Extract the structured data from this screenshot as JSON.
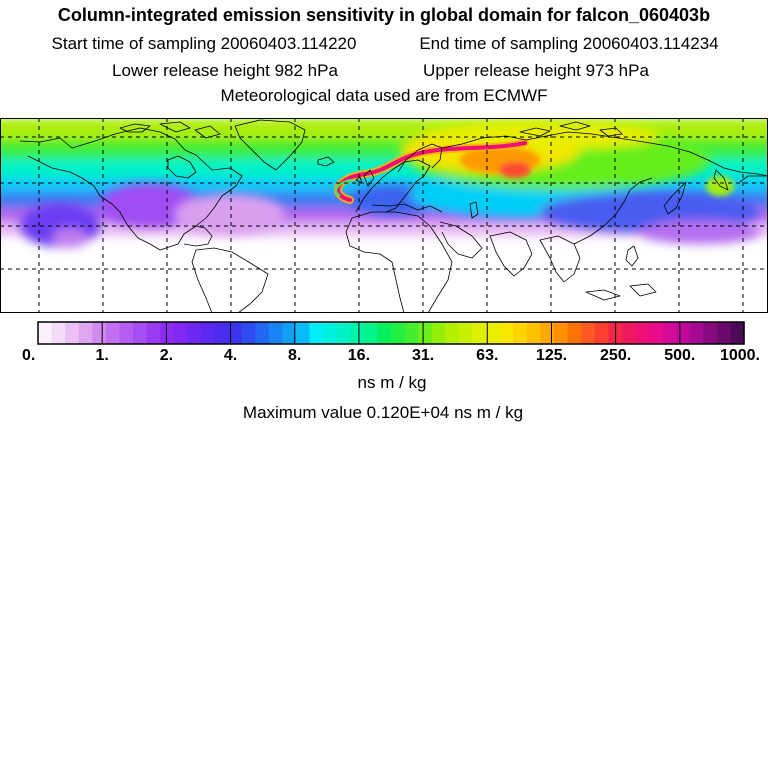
{
  "header": {
    "title": "Column-integrated emission sensitivity in global domain for falcon_060403b",
    "start_label": "Start time of sampling 20060403.114220",
    "end_label": "End time of sampling 20060403.114234",
    "lower_label": "Lower release height  982 hPa",
    "upper_label": "Upper release height  973 hPa",
    "met_label": "Meteorological data used are from ECMWF"
  },
  "colorbar": {
    "ticks": [
      "0.",
      "1.",
      "2.",
      "4.",
      "8.",
      "16.",
      "31.",
      "63.",
      "125.",
      "250.",
      "500.",
      "1000."
    ],
    "colors": [
      "#fbf0fb",
      "#f3dcf8",
      "#e9c1f4",
      "#dfa6f0",
      "#d18bee",
      "#c26ff0",
      "#b35ef1",
      "#a44ef3",
      "#9a3cf5",
      "#8e2cf6",
      "#8228f4",
      "#6e28f2",
      "#5a2af0",
      "#4a2cee",
      "#3a34ed",
      "#2e4cf0",
      "#2268f3",
      "#1884f6",
      "#10a0f8",
      "#08bcfa",
      "#00eef5",
      "#00f0e0",
      "#00f2c6",
      "#00f3a8",
      "#00f48a",
      "#06ef5c",
      "#22ee44",
      "#44ee2c",
      "#6cee18",
      "#94ee08",
      "#b4ef00",
      "#c8ef00",
      "#dcf000",
      "#eaee00",
      "#f6e800",
      "#ffd400",
      "#ffc000",
      "#ffa800",
      "#ff9000",
      "#ff7400",
      "#ff5a22",
      "#ff4030",
      "#f82848",
      "#f0185e",
      "#ee1076",
      "#ea0a8c",
      "#d60a98",
      "#c2089c",
      "#a40a94",
      "#880a80",
      "#6a0a6c",
      "#4e0a58"
    ],
    "unit_label": "ns m / kg",
    "max_label": "Maximum value  0.120E+04 ns m / kg"
  },
  "map": {
    "extent_lon": [
      -180,
      180
    ],
    "extent_lat": [
      -90,
      90
    ],
    "gridline_lon_step": 30,
    "gridline_lat_step": 30,
    "background": "#ffffff",
    "coastline_color": "#000000",
    "gridline_color": "#000000"
  }
}
